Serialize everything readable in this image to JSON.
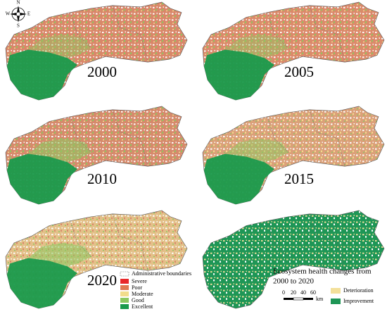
{
  "compass": {
    "north": "N",
    "south": "S",
    "east": "E",
    "west": "W"
  },
  "panels": [
    {
      "year": "2000"
    },
    {
      "year": "2005"
    },
    {
      "year": "2010"
    },
    {
      "year": "2015"
    },
    {
      "year": "2020"
    }
  ],
  "legend": {
    "boundary": "Administrative boundaries",
    "classes": [
      "Severe",
      "Poor",
      "Moderate",
      "Good",
      "Excellent"
    ]
  },
  "change_map": {
    "title_lines": [
      "Ecosystem health changes from",
      "2000 to 2020"
    ],
    "scale": {
      "ticks": [
        "0",
        "20",
        "40",
        "60"
      ],
      "unit": "km"
    },
    "classes": [
      "Deterioration",
      "Improvement"
    ]
  }
}
